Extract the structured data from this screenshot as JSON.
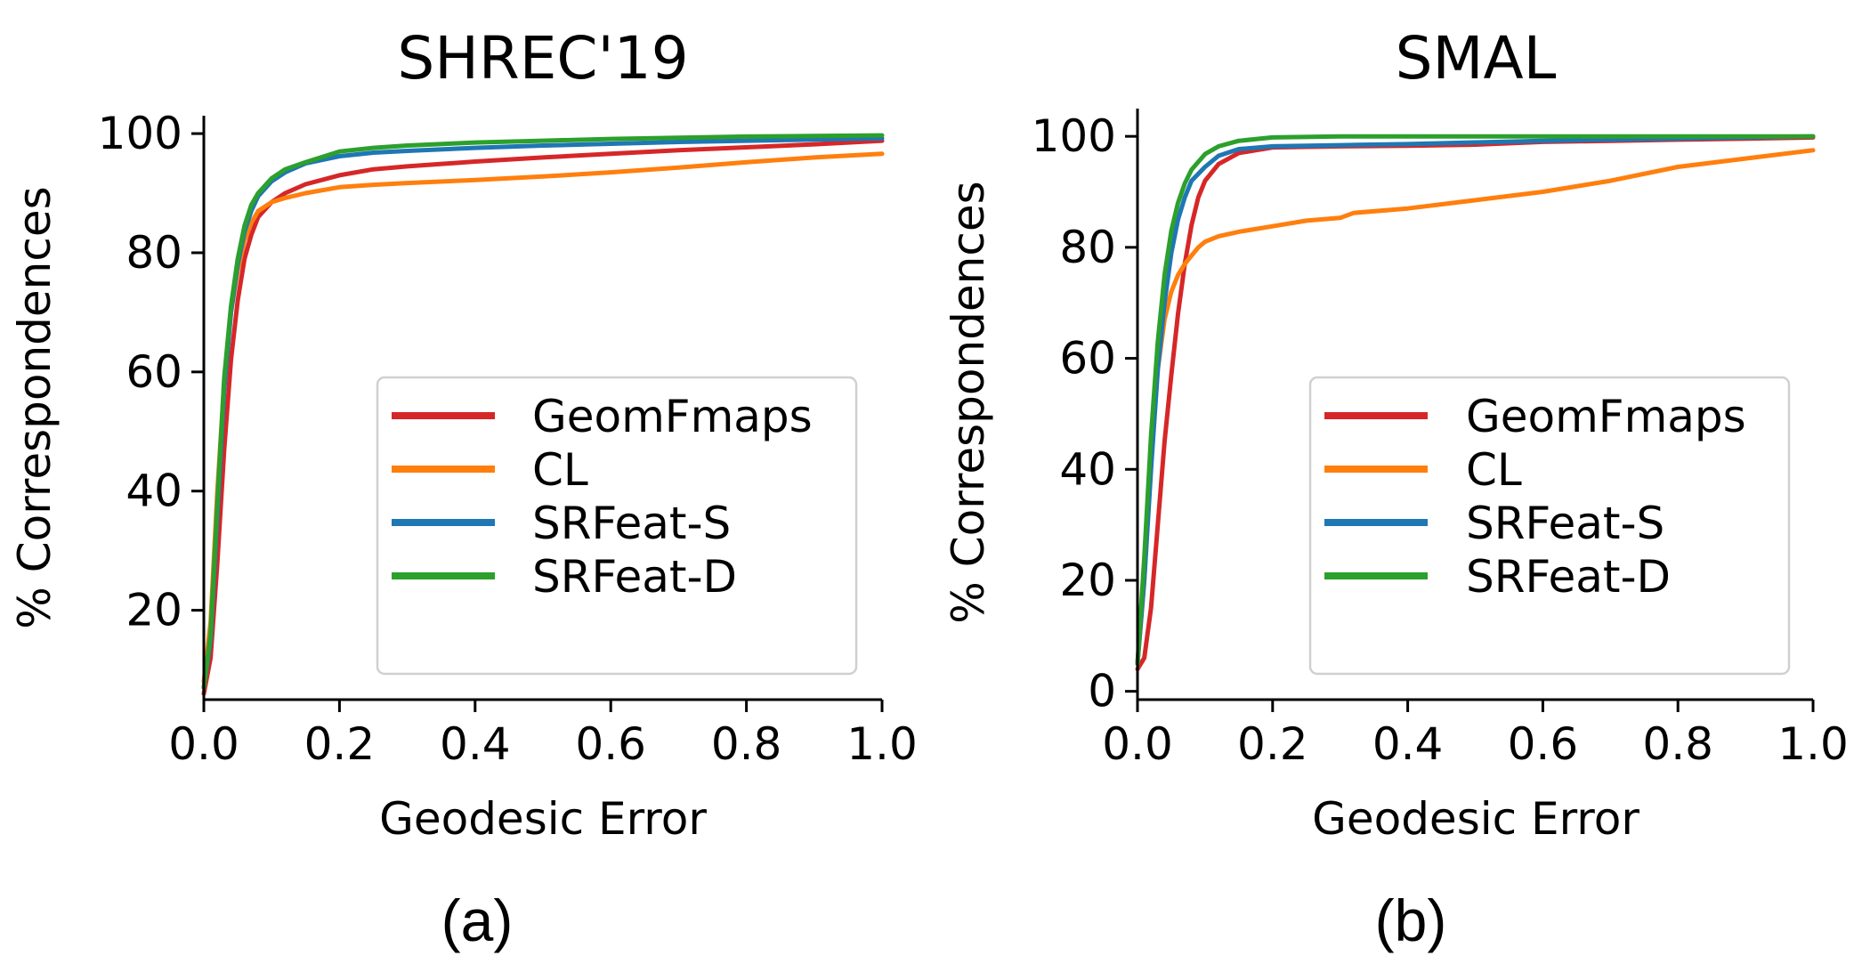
{
  "chart_data": [
    {
      "type": "line",
      "title": "SHREC'19",
      "caption": "(a)",
      "xlabel": "Geodesic Error",
      "ylabel": "% Correspondences",
      "xlim": [
        0,
        1
      ],
      "ylim": [
        5,
        103
      ],
      "xticks": [
        "0.0",
        "0.2",
        "0.4",
        "0.6",
        "0.8",
        "1.0"
      ],
      "yticks": [
        "20",
        "40",
        "60",
        "80",
        "100"
      ],
      "legend": "lower-right",
      "grid": false,
      "series": [
        {
          "name": "GeomFmaps",
          "color": "#d62728",
          "x": [
            0,
            0.01,
            0.02,
            0.03,
            0.04,
            0.05,
            0.06,
            0.07,
            0.08,
            0.1,
            0.12,
            0.15,
            0.2,
            0.25,
            0.3,
            0.4,
            0.5,
            0.6,
            0.7,
            0.8,
            0.9,
            1.0
          ],
          "y": [
            6,
            12,
            28,
            47,
            62,
            72,
            79,
            83,
            86,
            88.5,
            90,
            91.5,
            93,
            94,
            94.5,
            95.3,
            96,
            96.6,
            97.2,
            97.7,
            98.2,
            98.8
          ]
        },
        {
          "name": "CL",
          "color": "#ff7f0e",
          "x": [
            0,
            0.01,
            0.02,
            0.03,
            0.04,
            0.05,
            0.06,
            0.07,
            0.08,
            0.1,
            0.12,
            0.15,
            0.2,
            0.25,
            0.3,
            0.4,
            0.5,
            0.6,
            0.7,
            0.8,
            0.9,
            1.0
          ],
          "y": [
            8,
            18,
            40,
            58,
            70,
            77,
            82,
            85,
            87,
            88.5,
            89.2,
            90,
            91,
            91.4,
            91.7,
            92.2,
            92.8,
            93.5,
            94.3,
            95.2,
            96,
            96.6
          ]
        },
        {
          "name": "SRFeat-S",
          "color": "#1f77b4",
          "x": [
            0,
            0.01,
            0.02,
            0.03,
            0.04,
            0.05,
            0.06,
            0.07,
            0.08,
            0.1,
            0.12,
            0.15,
            0.2,
            0.25,
            0.3,
            0.4,
            0.5,
            0.6,
            0.7,
            0.8,
            0.9,
            1.0
          ],
          "y": [
            7,
            15,
            36,
            57,
            70,
            78,
            83.5,
            87,
            89.5,
            92,
            93.5,
            95,
            96.2,
            96.8,
            97.1,
            97.6,
            98,
            98.3,
            98.6,
            98.8,
            99,
            99.2
          ]
        },
        {
          "name": "SRFeat-D",
          "color": "#2ca02c",
          "x": [
            0,
            0.01,
            0.02,
            0.03,
            0.04,
            0.05,
            0.06,
            0.07,
            0.08,
            0.1,
            0.12,
            0.15,
            0.2,
            0.25,
            0.3,
            0.4,
            0.5,
            0.6,
            0.7,
            0.8,
            0.9,
            1.0
          ],
          "y": [
            7,
            16,
            38,
            59,
            71,
            79,
            84.5,
            88,
            90,
            92.5,
            94,
            95.2,
            97,
            97.6,
            98,
            98.5,
            98.8,
            99.1,
            99.3,
            99.5,
            99.6,
            99.7
          ]
        }
      ]
    },
    {
      "type": "line",
      "title": "SMAL",
      "caption": "(b)",
      "xlabel": "Geodesic Error",
      "ylabel": "% Correspondences",
      "xlim": [
        0,
        1
      ],
      "ylim": [
        -1.5,
        105
      ],
      "xticks": [
        "0.0",
        "0.2",
        "0.4",
        "0.6",
        "0.8",
        "1.0"
      ],
      "yticks": [
        "0",
        "20",
        "40",
        "60",
        "80",
        "100"
      ],
      "legend": "lower-right",
      "grid": false,
      "series": [
        {
          "name": "GeomFmaps",
          "color": "#d62728",
          "x": [
            0,
            0.01,
            0.02,
            0.03,
            0.04,
            0.05,
            0.06,
            0.07,
            0.08,
            0.09,
            0.1,
            0.12,
            0.15,
            0.2,
            0.3,
            0.4,
            0.5,
            0.6,
            0.7,
            0.8,
            0.9,
            1.0
          ],
          "y": [
            4,
            6,
            15,
            30,
            45,
            57,
            68,
            77,
            84,
            89,
            92,
            95,
            97,
            98,
            98.2,
            98.3,
            98.5,
            99,
            99.2,
            99.4,
            99.6,
            99.8
          ]
        },
        {
          "name": "CL",
          "color": "#ff7f0e",
          "x": [
            0,
            0.01,
            0.02,
            0.03,
            0.04,
            0.05,
            0.06,
            0.07,
            0.08,
            0.09,
            0.1,
            0.12,
            0.15,
            0.2,
            0.25,
            0.3,
            0.32,
            0.4,
            0.5,
            0.6,
            0.7,
            0.8,
            0.9,
            1.0
          ],
          "y": [
            5,
            20,
            42,
            58,
            67,
            72,
            75,
            77,
            78.5,
            80,
            81,
            82,
            82.8,
            83.8,
            84.8,
            85.3,
            86.2,
            87,
            88.5,
            90,
            92,
            94.5,
            96,
            97.5
          ]
        },
        {
          "name": "SRFeat-S",
          "color": "#1f77b4",
          "x": [
            0,
            0.01,
            0.02,
            0.03,
            0.04,
            0.05,
            0.06,
            0.07,
            0.08,
            0.1,
            0.12,
            0.15,
            0.2,
            0.3,
            0.4,
            0.5,
            0.6,
            0.7,
            0.8,
            0.9,
            1.0
          ],
          "y": [
            5,
            20,
            40,
            58,
            70,
            79,
            85,
            89,
            92,
            94.5,
            96.5,
            97.7,
            98.2,
            98.4,
            98.6,
            98.9,
            99.2,
            99.4,
            99.6,
            99.8,
            100
          ]
        },
        {
          "name": "SRFeat-D",
          "color": "#2ca02c",
          "x": [
            0,
            0.01,
            0.02,
            0.03,
            0.04,
            0.05,
            0.06,
            0.07,
            0.08,
            0.1,
            0.12,
            0.15,
            0.2,
            0.3,
            0.4,
            0.5,
            0.6,
            0.7,
            0.8,
            0.9,
            1.0
          ],
          "y": [
            5,
            24,
            46,
            63,
            75,
            83,
            88,
            91.5,
            94,
            96.8,
            98.2,
            99.2,
            99.8,
            100,
            100,
            100,
            100,
            100,
            100,
            100,
            100
          ]
        }
      ]
    }
  ]
}
